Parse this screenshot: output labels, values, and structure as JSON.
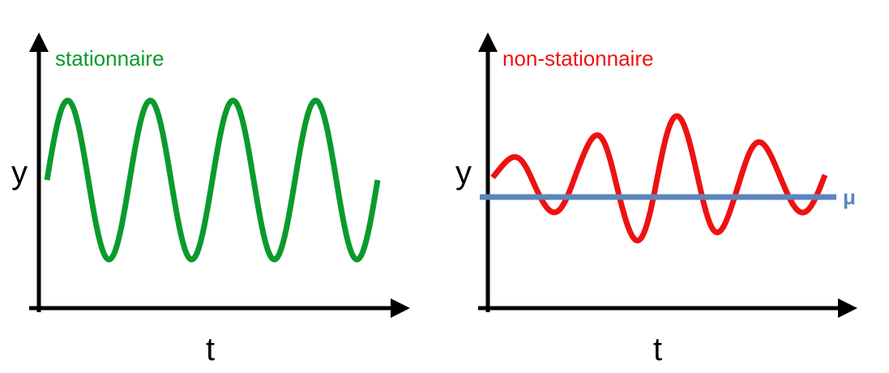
{
  "panels": [
    {
      "title": "stationnaire",
      "title_color": "#0a9a2c",
      "xlabel": "t",
      "ylabel": "y",
      "curve_color": "#0a9a2c",
      "amplitude": [
        1,
        1,
        1,
        1,
        1,
        1,
        1,
        1,
        1
      ],
      "cycles": 4
    },
    {
      "title": "non-stationnaire",
      "title_color": "#ee1111",
      "xlabel": "t",
      "ylabel": "y",
      "curve_color": "#ee1111",
      "amplitude": [
        0.4,
        0.7,
        0.85,
        1.3,
        1.6,
        1.4,
        1.0,
        0.75,
        0.8
      ],
      "cycles": 4,
      "mean_line_label": "μ",
      "mean_line_color": "#5b86bb"
    }
  ]
}
